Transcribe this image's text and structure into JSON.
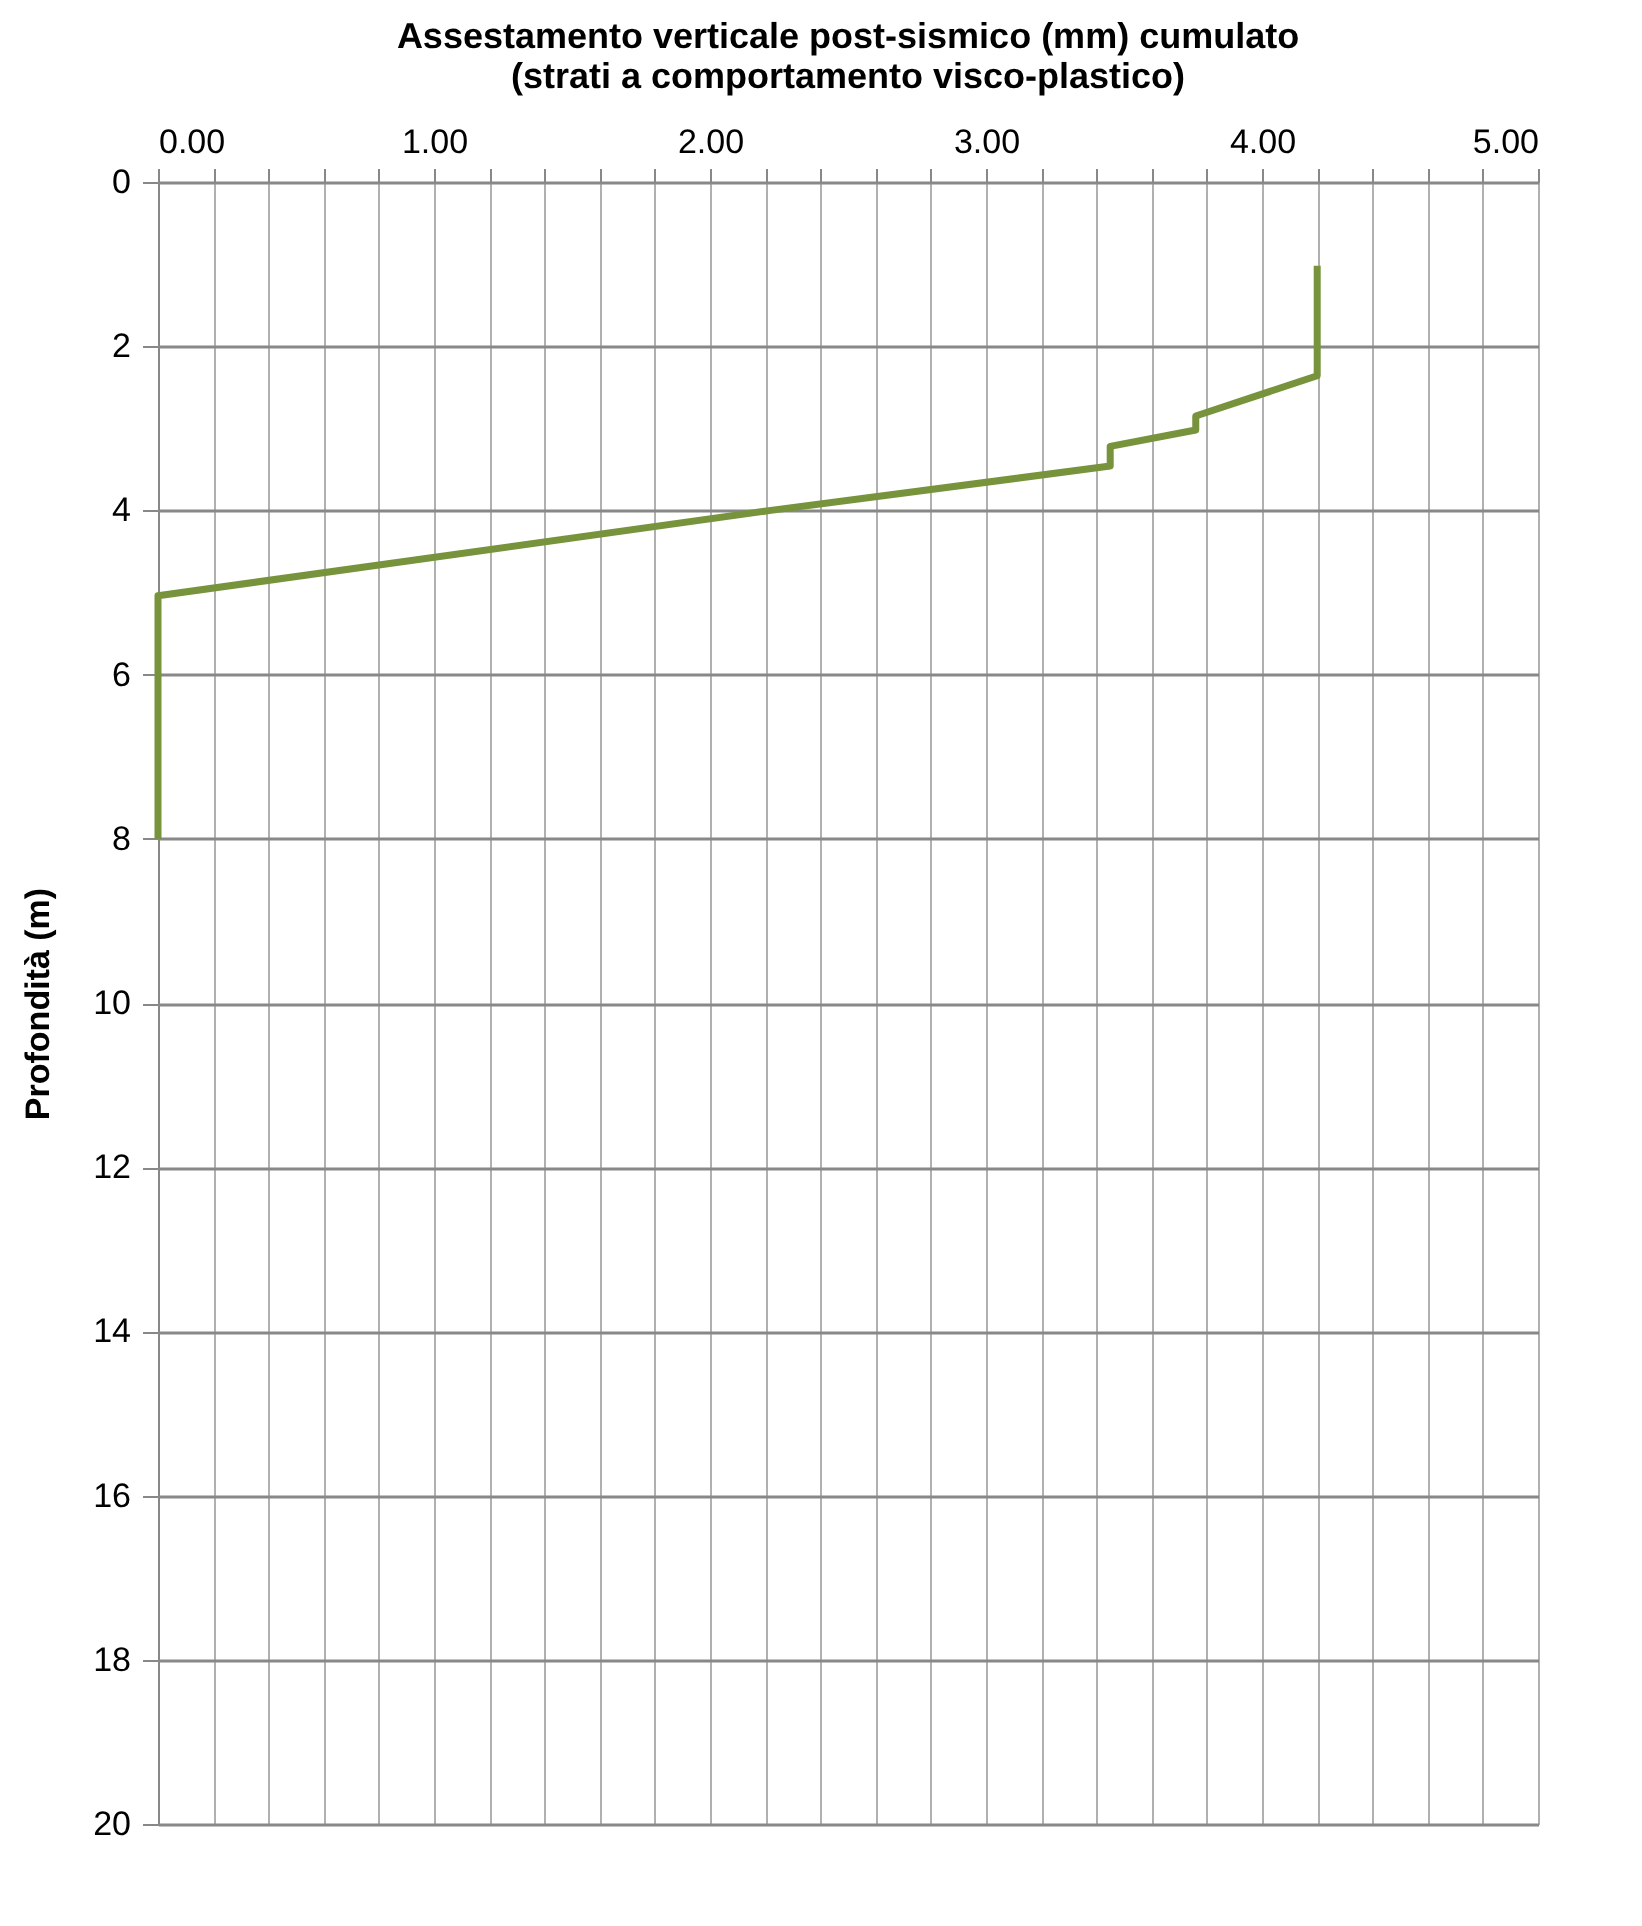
{
  "chart_data": {
    "type": "line",
    "title": [
      "Assestamento verticale post-sismico (mm) cumulato",
      "(strati a comportamento visco-plastico)"
    ],
    "ylabel": "Profondità (m)",
    "x": [
      4.2,
      4.2,
      3.76,
      3.76,
      3.45,
      3.45,
      2.22,
      0,
      0
    ],
    "series": [
      {
        "color": "#77933c",
        "values": [
          1.02,
          2.36,
          2.85,
          3.02,
          3.22,
          3.46,
          4.0,
          5.04,
          8.0
        ]
      }
    ],
    "xlim": [
      0,
      5
    ],
    "xticks": [
      {
        "value": 0,
        "label": "0.00"
      },
      {
        "value": 0.2,
        "label": null
      },
      {
        "value": 0.4,
        "label": null
      },
      {
        "value": 0.6,
        "label": null
      },
      {
        "value": 0.8,
        "label": null
      },
      {
        "value": 1,
        "label": "1.00"
      },
      {
        "value": 1.2,
        "label": null
      },
      {
        "value": 1.4,
        "label": null
      },
      {
        "value": 1.6,
        "label": null
      },
      {
        "value": 1.8,
        "label": null
      },
      {
        "value": 2,
        "label": "2.00"
      },
      {
        "value": 2.2,
        "label": null
      },
      {
        "value": 2.4,
        "label": null
      },
      {
        "value": 2.6,
        "label": null
      },
      {
        "value": 2.8,
        "label": null
      },
      {
        "value": 3,
        "label": "3.00"
      },
      {
        "value": 3.2,
        "label": null
      },
      {
        "value": 3.4,
        "label": null
      },
      {
        "value": 3.6,
        "label": null
      },
      {
        "value": 3.8,
        "label": null
      },
      {
        "value": 4,
        "label": "4.00"
      },
      {
        "value": 4.2,
        "label": null
      },
      {
        "value": 4.4,
        "label": null
      },
      {
        "value": 4.6,
        "label": null
      },
      {
        "value": 4.8,
        "label": null
      },
      {
        "value": 5,
        "label": "5.00"
      }
    ],
    "ylim": [
      20,
      0
    ],
    "yticks": [
      0,
      2,
      4,
      6,
      8,
      10,
      12,
      14,
      16,
      18,
      20
    ],
    "grid": true,
    "marker": "none",
    "line_style": "solid"
  }
}
